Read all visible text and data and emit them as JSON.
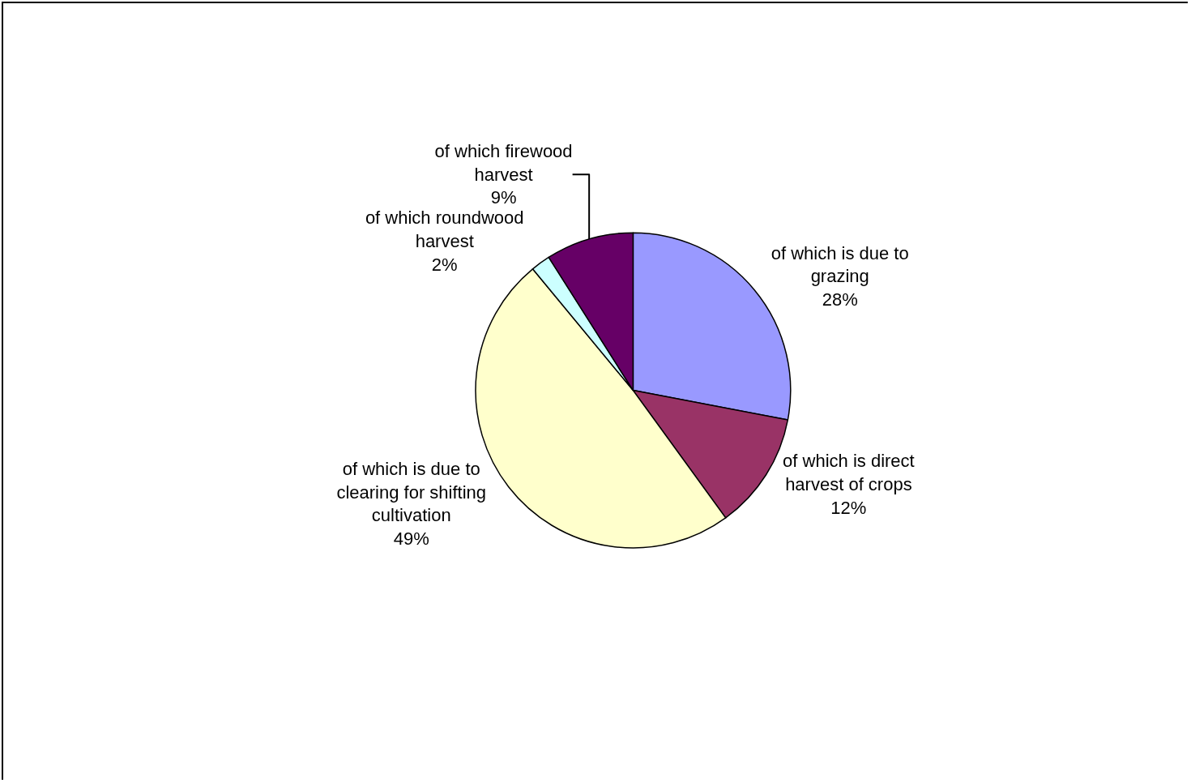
{
  "chart_data": {
    "type": "pie",
    "categories": [
      "of which is due to grazing",
      "of which is direct harvest of crops",
      "of which is due to clearing for shifting cultivation",
      "of which roundwood harvest",
      "of which firewood harvest"
    ],
    "values": [
      28,
      12,
      49,
      2,
      9
    ],
    "value_labels": [
      "28%",
      "12%",
      "49%",
      "2%",
      "9%"
    ],
    "colors": [
      "#9999ff",
      "#993366",
      "#ffffcc",
      "#ccffff",
      "#660066"
    ],
    "legend": false
  }
}
